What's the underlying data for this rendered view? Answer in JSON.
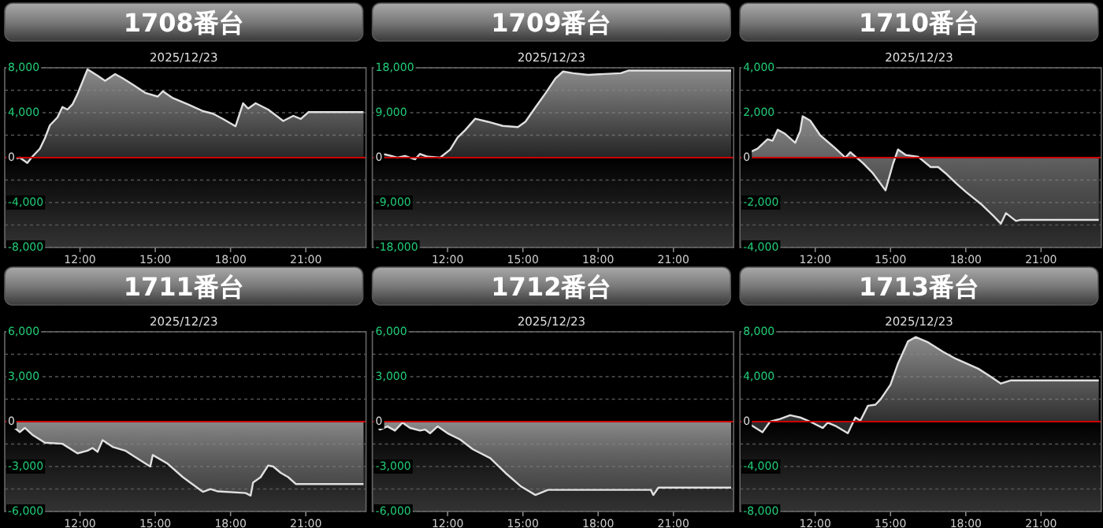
{
  "chart_data": [
    {
      "type": "area",
      "title": "1708番台",
      "subtitle": "2025/12/23",
      "color": "#8a8a8a",
      "grid": "y",
      "xlim": [
        9,
        23.4
      ],
      "xticks": [
        {
          "value": 12,
          "label": "12:00"
        },
        {
          "value": 15,
          "label": "15:00"
        },
        {
          "value": 18,
          "label": "18:00"
        },
        {
          "value": 21,
          "label": "21:00"
        }
      ],
      "ylim": [
        -8000,
        8000
      ],
      "yticks": [
        {
          "value": 8000,
          "label": "8,000"
        },
        {
          "value": 6000,
          "label": null
        },
        {
          "value": 4000,
          "label": "4,000"
        },
        {
          "value": 2000,
          "label": null
        },
        {
          "value": 0,
          "label": "0"
        },
        {
          "value": -2000,
          "label": null
        },
        {
          "value": -4000,
          "label": "-4,000"
        },
        {
          "value": -6000,
          "label": null
        },
        {
          "value": -8000,
          "label": "-8,000"
        }
      ],
      "ref_lines": [
        {
          "axis": "y",
          "value": 0,
          "color": "#cc0000"
        }
      ],
      "x": [
        9.1,
        9.3,
        9.6,
        9.9,
        10.1,
        10.4,
        10.6,
        10.8,
        11.1,
        11.3,
        11.5,
        11.7,
        11.9,
        12.3,
        12.7,
        13.0,
        13.4,
        13.7,
        14.1,
        14.6,
        15.1,
        15.3,
        15.7,
        16.3,
        16.9,
        17.3,
        17.7,
        18.2,
        18.5,
        18.7,
        19.0,
        19.5,
        20.1,
        20.5,
        20.8,
        21.1,
        23.3
      ],
      "values": [
        0,
        -140,
        0,
        -470,
        90,
        790,
        1720,
        2880,
        3580,
        4510,
        4280,
        4740,
        5670,
        7860,
        7300,
        6840,
        7440,
        7070,
        6510,
        5770,
        5440,
        5910,
        5300,
        4740,
        4140,
        3910,
        3440,
        2790,
        4840,
        4370,
        4840,
        4280,
        3260,
        3720,
        3440,
        4050,
        4050
      ]
    },
    {
      "type": "area",
      "title": "1709番台",
      "subtitle": "2025/12/23",
      "color": "#8a8a8a",
      "grid": "y",
      "xlim": [
        9,
        23.4
      ],
      "xticks": [
        {
          "value": 12,
          "label": "12:00"
        },
        {
          "value": 15,
          "label": "15:00"
        },
        {
          "value": 18,
          "label": "18:00"
        },
        {
          "value": 21,
          "label": "21:00"
        }
      ],
      "ylim": [
        -18000,
        18000
      ],
      "yticks": [
        {
          "value": 18000,
          "label": "18,000"
        },
        {
          "value": 13500,
          "label": null
        },
        {
          "value": 9000,
          "label": "9,000"
        },
        {
          "value": 4500,
          "label": null
        },
        {
          "value": 0,
          "label": "0"
        },
        {
          "value": -4500,
          "label": null
        },
        {
          "value": -9000,
          "label": "-9,000"
        },
        {
          "value": -13500,
          "label": null
        },
        {
          "value": -18000,
          "label": "-18,000"
        }
      ],
      "ref_lines": [
        {
          "axis": "y",
          "value": 0,
          "color": "#cc0000"
        }
      ],
      "x": [
        9.1,
        9.4,
        9.7,
        10.0,
        10.3,
        10.7,
        10.9,
        11.2,
        11.7,
        12.1,
        12.4,
        12.7,
        13.1,
        13.6,
        14.2,
        14.8,
        15.1,
        15.5,
        15.9,
        16.3,
        16.6,
        17.0,
        17.6,
        18.9,
        19.2,
        23.3
      ],
      "values": [
        0,
        750,
        420,
        0,
        330,
        -330,
        750,
        190,
        0,
        1600,
        4040,
        5500,
        7800,
        7190,
        6350,
        6110,
        7190,
        10060,
        12880,
        15890,
        17250,
        16920,
        16590,
        16920,
        17440,
        17440
      ]
    },
    {
      "type": "area",
      "title": "1710番台",
      "subtitle": "2025/12/23",
      "color": "#8a8a8a",
      "grid": "y",
      "xlim": [
        9,
        23.4
      ],
      "xticks": [
        {
          "value": 12,
          "label": "12:00"
        },
        {
          "value": 15,
          "label": "15:00"
        },
        {
          "value": 18,
          "label": "18:00"
        },
        {
          "value": 21,
          "label": "21:00"
        }
      ],
      "ylim": [
        -4000,
        4000
      ],
      "yticks": [
        {
          "value": 4000,
          "label": "4,000"
        },
        {
          "value": 3000,
          "label": null
        },
        {
          "value": 2000,
          "label": "2,000"
        },
        {
          "value": 1000,
          "label": null
        },
        {
          "value": 0,
          "label": "0"
        },
        {
          "value": -1000,
          "label": null
        },
        {
          "value": -2000,
          "label": "-2,000"
        },
        {
          "value": -3000,
          "label": null
        },
        {
          "value": -4000,
          "label": "-4,000"
        }
      ],
      "ref_lines": [
        {
          "axis": "y",
          "value": 0,
          "color": "#cc0000"
        }
      ],
      "x": [
        9.1,
        9.4,
        9.7,
        10.1,
        10.3,
        10.5,
        10.8,
        11.2,
        11.4,
        11.5,
        11.8,
        12.2,
        12.8,
        13.2,
        13.4,
        13.9,
        14.3,
        14.8,
        15.1,
        15.3,
        15.6,
        16.1,
        16.6,
        16.9,
        17.2,
        17.6,
        18.0,
        18.6,
        19.1,
        19.4,
        19.6,
        20.0,
        20.2,
        23.3
      ],
      "values": [
        0,
        240,
        400,
        820,
        750,
        1240,
        1060,
        660,
        1180,
        1840,
        1650,
        990,
        420,
        0,
        240,
        -240,
        -700,
        -1460,
        -280,
        360,
        120,
        40,
        -420,
        -420,
        -700,
        -1130,
        -1520,
        -2060,
        -2590,
        -2940,
        -2470,
        -2820,
        -2770,
        -2770
      ]
    },
    {
      "type": "area",
      "title": "1711番台",
      "subtitle": "2025/12/23",
      "color": "#8a8a8a",
      "grid": "y",
      "xlim": [
        9,
        23.4
      ],
      "xticks": [
        {
          "value": 12,
          "label": "12:00"
        },
        {
          "value": 15,
          "label": "15:00"
        },
        {
          "value": 18,
          "label": "18:00"
        },
        {
          "value": 21,
          "label": "21:00"
        }
      ],
      "ylim": [
        -6000,
        6000
      ],
      "yticks": [
        {
          "value": 6000,
          "label": "6,000"
        },
        {
          "value": 4500,
          "label": null
        },
        {
          "value": 3000,
          "label": "3,000"
        },
        {
          "value": 1500,
          "label": null
        },
        {
          "value": 0,
          "label": "0"
        },
        {
          "value": -1500,
          "label": null
        },
        {
          "value": -3000,
          "label": "-3,000"
        },
        {
          "value": -4500,
          "label": null
        },
        {
          "value": -6000,
          "label": "-6,000"
        }
      ],
      "ref_lines": [
        {
          "axis": "y",
          "value": 0,
          "color": "#cc0000"
        }
      ],
      "x": [
        9.1,
        9.4,
        9.6,
        9.8,
        10.1,
        10.6,
        11.3,
        11.9,
        12.3,
        12.5,
        12.7,
        12.9,
        13.3,
        13.8,
        14.3,
        14.8,
        14.9,
        15.5,
        16.1,
        16.9,
        17.2,
        17.5,
        18.6,
        18.8,
        18.9,
        19.2,
        19.5,
        19.7,
        20.0,
        20.3,
        20.6,
        23.3
      ],
      "values": [
        70,
        -420,
        -700,
        -420,
        -880,
        -1410,
        -1480,
        -2120,
        -1940,
        -1760,
        -2020,
        -1240,
        -1690,
        -1940,
        -2470,
        -3000,
        -2230,
        -2820,
        -3710,
        -4690,
        -4510,
        -4660,
        -4770,
        -4940,
        -4060,
        -3710,
        -2930,
        -3000,
        -3420,
        -3710,
        -4170,
        -4170
      ]
    },
    {
      "type": "area",
      "title": "1712番台",
      "subtitle": "2025/12/23",
      "color": "#8a8a8a",
      "grid": "y",
      "xlim": [
        9,
        23.4
      ],
      "xticks": [
        {
          "value": 12,
          "label": "12:00"
        },
        {
          "value": 15,
          "label": "15:00"
        },
        {
          "value": 18,
          "label": "18:00"
        },
        {
          "value": 21,
          "label": "21:00"
        }
      ],
      "ylim": [
        -6000,
        6000
      ],
      "yticks": [
        {
          "value": 6000,
          "label": "6,000"
        },
        {
          "value": 4500,
          "label": null
        },
        {
          "value": 3000,
          "label": "3,000"
        },
        {
          "value": 1500,
          "label": null
        },
        {
          "value": 0,
          "label": "0"
        },
        {
          "value": -1500,
          "label": null
        },
        {
          "value": -3000,
          "label": "-3,000"
        },
        {
          "value": -4500,
          "label": null
        },
        {
          "value": -6000,
          "label": "-6,000"
        }
      ],
      "ref_lines": [
        {
          "axis": "y",
          "value": 0,
          "color": "#cc0000"
        }
      ],
      "x": [
        9.1,
        9.3,
        9.6,
        9.9,
        10.2,
        10.5,
        10.9,
        11.1,
        11.3,
        11.6,
        12.0,
        12.5,
        13.0,
        13.7,
        14.3,
        14.9,
        15.5,
        16.0,
        17.6,
        20.1,
        20.2,
        20.4,
        23.3
      ],
      "values": [
        -70,
        -530,
        -320,
        -600,
        -70,
        -420,
        -600,
        -530,
        -780,
        -320,
        -780,
        -1200,
        -1840,
        -2440,
        -3420,
        -4300,
        -4900,
        -4560,
        -4560,
        -4560,
        -4900,
        -4410,
        -4410
      ]
    },
    {
      "type": "area",
      "title": "1713番台",
      "subtitle": "2025/12/23",
      "color": "#8a8a8a",
      "grid": "y",
      "xlim": [
        9,
        23.4
      ],
      "xticks": [
        {
          "value": 12,
          "label": "12:00"
        },
        {
          "value": 15,
          "label": "15:00"
        },
        {
          "value": 18,
          "label": "18:00"
        },
        {
          "value": 21,
          "label": "21:00"
        }
      ],
      "ylim": [
        -8000,
        8000
      ],
      "yticks": [
        {
          "value": 8000,
          "label": "8,000"
        },
        {
          "value": 6000,
          "label": null
        },
        {
          "value": 4000,
          "label": "4,000"
        },
        {
          "value": 2000,
          "label": null
        },
        {
          "value": 0,
          "label": "0"
        },
        {
          "value": -2000,
          "label": null
        },
        {
          "value": -4000,
          "label": "-4,000"
        },
        {
          "value": -6000,
          "label": null
        },
        {
          "value": -8000,
          "label": "-8,000"
        }
      ],
      "ref_lines": [
        {
          "axis": "y",
          "value": 0,
          "color": "#cc0000"
        }
      ],
      "x": [
        9.1,
        9.4,
        9.9,
        10.2,
        10.6,
        11.0,
        11.4,
        11.8,
        12.3,
        12.5,
        12.8,
        13.3,
        13.6,
        13.8,
        14.1,
        14.4,
        14.6,
        15.0,
        15.3,
        15.7,
        16.0,
        16.5,
        17.1,
        17.6,
        18.5,
        18.9,
        19.4,
        19.8,
        23.3
      ],
      "values": [
        -90,
        -240,
        -940,
        0,
        240,
        570,
        370,
        0,
        -570,
        -90,
        -370,
        -1030,
        370,
        90,
        1410,
        1510,
        1970,
        3290,
        5180,
        7150,
        7530,
        7060,
        6210,
        5600,
        4710,
        4140,
        3390,
        3670,
        3670
      ]
    }
  ]
}
